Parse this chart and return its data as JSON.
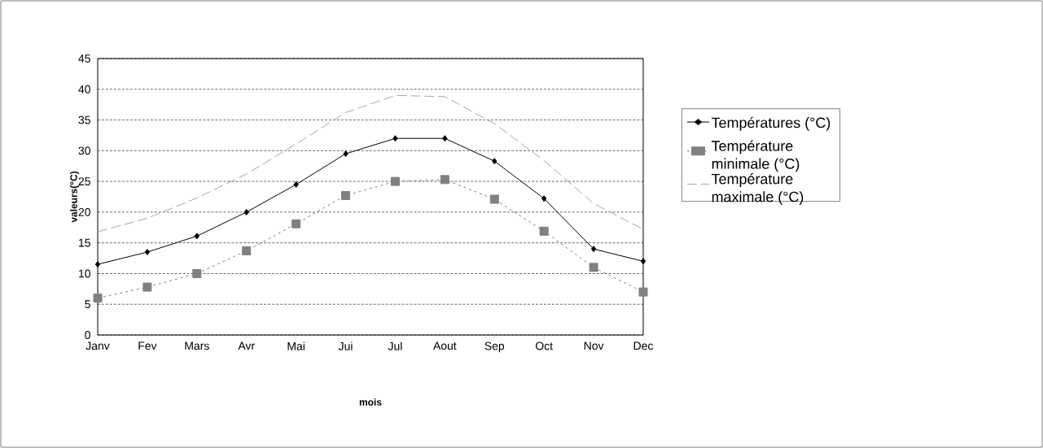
{
  "chart_data": {
    "type": "line",
    "xlabel": "mois",
    "ylabel": "valeurs(°C)",
    "categories": [
      "Janv",
      "Fev",
      "Mars",
      "Avr",
      "Mai",
      "Jui",
      "Jul",
      "Aout",
      "Sep",
      "Oct",
      "Nov",
      "Dec"
    ],
    "series": [
      {
        "name": "Températures (°C)",
        "color": "#000000",
        "marker": "diamond",
        "line_style": "solid",
        "values": [
          11.5,
          13.5,
          16.1,
          20,
          24.5,
          29.5,
          32,
          32,
          28.3,
          22.2,
          14,
          12
        ]
      },
      {
        "name": "Température minimale (°C)",
        "color": "#808080",
        "marker": "square",
        "line_style": "dotted",
        "values": [
          6,
          7.8,
          10,
          13.7,
          18.1,
          22.7,
          25,
          25.3,
          22.1,
          16.9,
          11,
          7
        ]
      },
      {
        "name": "Température maximale (°C)",
        "color": "#a6a6a6",
        "marker": "none",
        "line_style": "dashed",
        "values": [
          16.8,
          19,
          22.3,
          26.2,
          31.1,
          36.2,
          39,
          38.8,
          34.4,
          28.4,
          21.4,
          17.2
        ]
      }
    ],
    "ylim": [
      0,
      45
    ],
    "yticks": [
      0,
      5,
      10,
      15,
      20,
      25,
      30,
      35,
      40,
      45
    ],
    "grid": "y",
    "legend": "right"
  }
}
